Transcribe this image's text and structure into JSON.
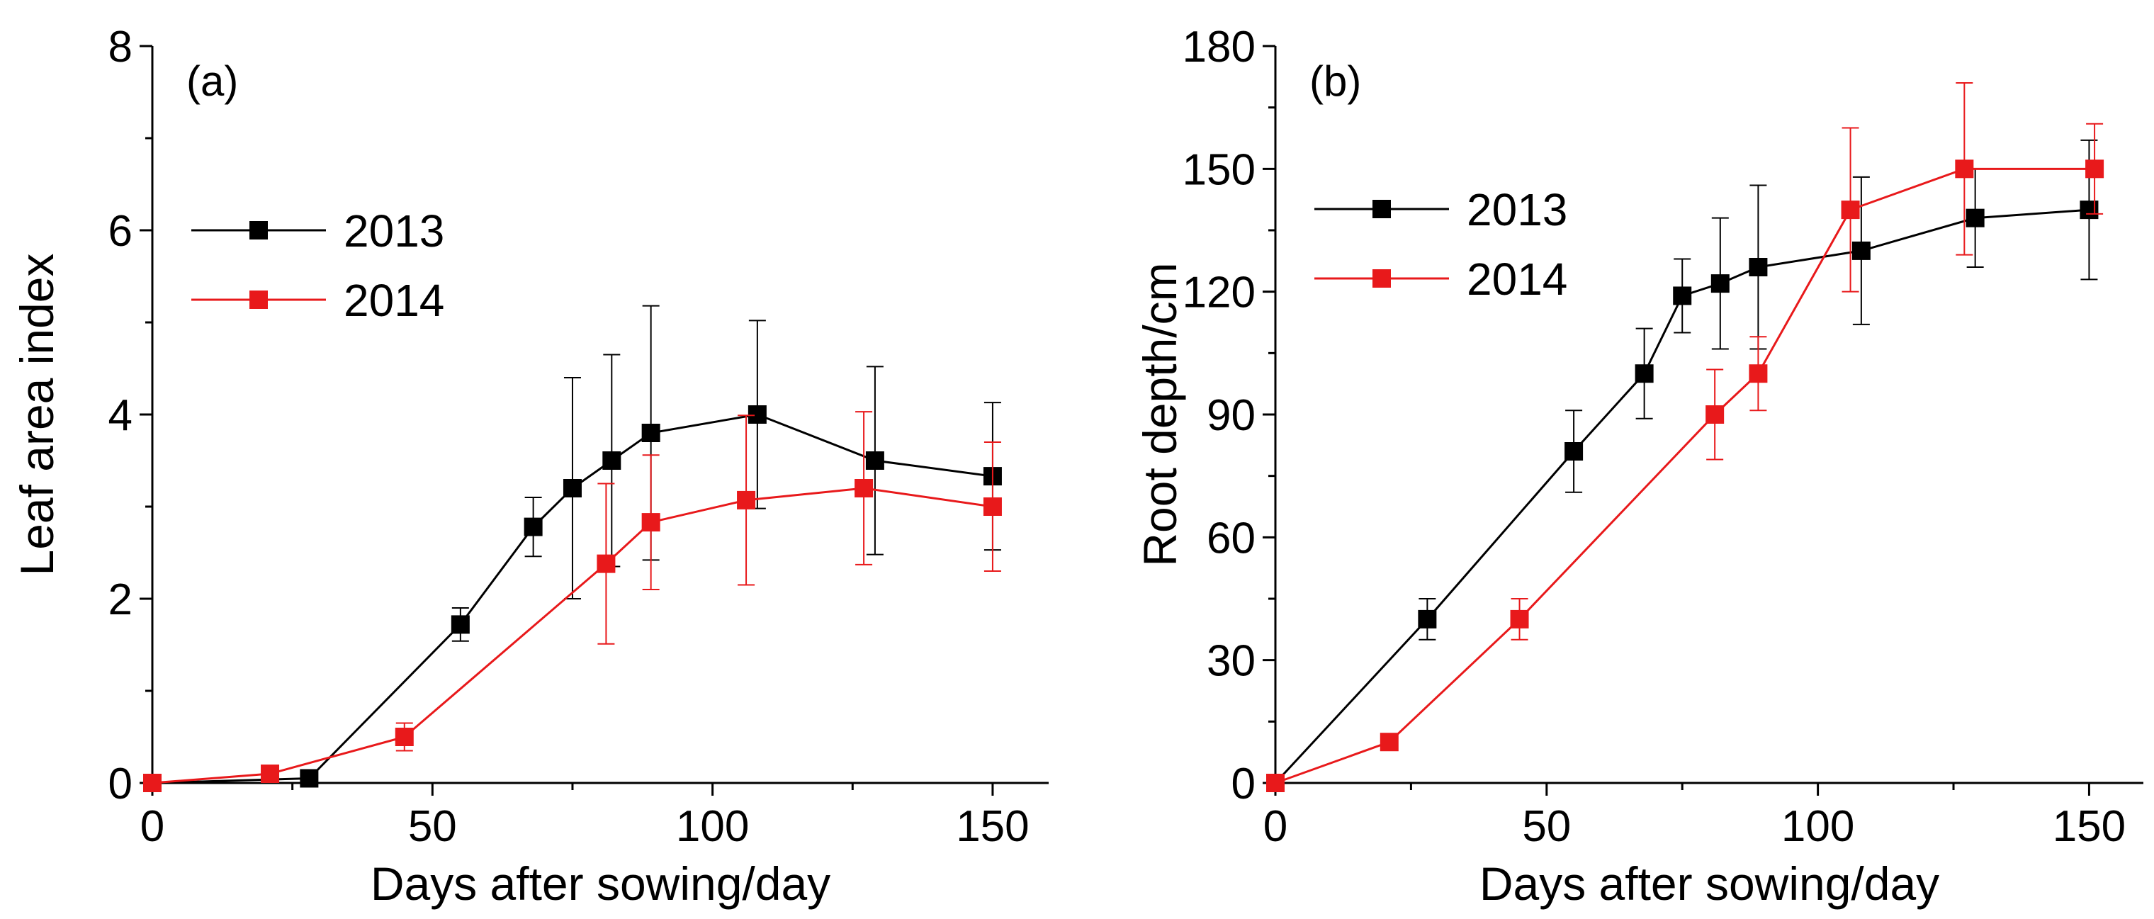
{
  "chart_data": [
    {
      "type": "line",
      "panel_label": "(a)",
      "xlabel": "Days after sowing/day",
      "ylabel": "Leaf area index",
      "xlim": [
        0,
        160
      ],
      "ylim": [
        0,
        8
      ],
      "xticks": [
        0,
        50,
        100,
        150
      ],
      "yticks": [
        0,
        2,
        4,
        6,
        8
      ],
      "grid": false,
      "legend_position": "top-left",
      "series": [
        {
          "name": "2013",
          "color": "#000000",
          "x": [
            0,
            28,
            55,
            68,
            75,
            82,
            89,
            108,
            129,
            150
          ],
          "y": [
            0,
            0.05,
            1.72,
            2.78,
            3.2,
            3.5,
            3.8,
            4.0,
            3.5,
            3.33
          ],
          "err": [
            0,
            0,
            0.18,
            0.32,
            1.2,
            1.15,
            1.38,
            1.02,
            1.02,
            0.8
          ]
        },
        {
          "name": "2014",
          "color": "#e8191b",
          "x": [
            0,
            21,
            45,
            81,
            89,
            106,
            127,
            150
          ],
          "y": [
            0,
            0.1,
            0.5,
            2.38,
            2.83,
            3.07,
            3.2,
            3.0
          ],
          "err": [
            0,
            0.05,
            0.15,
            0.87,
            0.73,
            0.92,
            0.83,
            0.7
          ]
        }
      ]
    },
    {
      "type": "line",
      "panel_label": "(b)",
      "xlabel": "Days after sowing/day",
      "ylabel": "Root depth/cm",
      "xlim": [
        0,
        160
      ],
      "ylim": [
        0,
        180
      ],
      "xticks": [
        0,
        50,
        100,
        150
      ],
      "yticks": [
        0,
        30,
        60,
        90,
        120,
        150,
        180
      ],
      "grid": false,
      "legend_position": "top-left",
      "series": [
        {
          "name": "2013",
          "color": "#000000",
          "x": [
            0,
            28,
            55,
            68,
            75,
            82,
            89,
            108,
            129,
            150
          ],
          "y": [
            0,
            40,
            81,
            100,
            119,
            122,
            126,
            130,
            138,
            140
          ],
          "err": [
            0,
            5,
            10,
            11,
            9,
            16,
            20,
            18,
            12,
            17
          ]
        },
        {
          "name": "2014",
          "color": "#e8191b",
          "x": [
            0,
            21,
            45,
            81,
            89,
            106,
            127,
            151
          ],
          "y": [
            0,
            10,
            40,
            90,
            100,
            140,
            150,
            150
          ],
          "err": [
            0,
            0,
            5,
            11,
            9,
            20,
            21,
            11
          ]
        }
      ]
    }
  ]
}
